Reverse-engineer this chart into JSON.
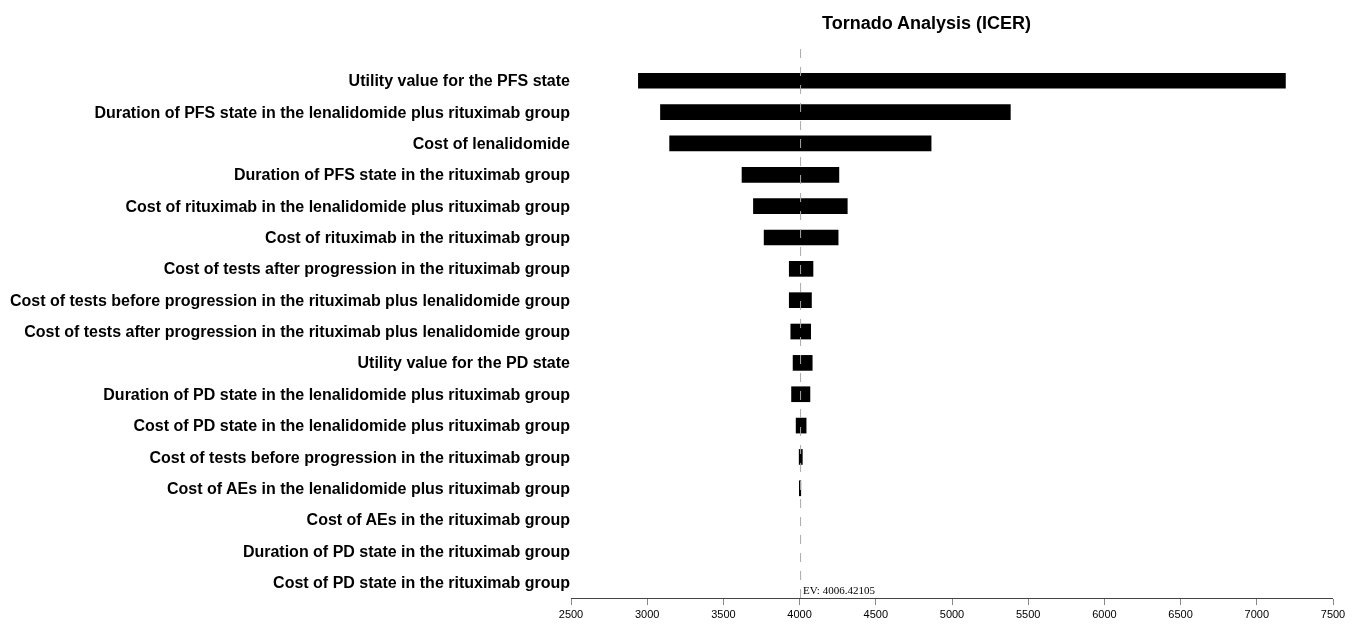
{
  "chart_data": {
    "type": "bar",
    "orientation": "horizontal",
    "title": "Tornado Analysis (ICER)",
    "categories": [
      "Utility value for the PFS state",
      "Duration of PFS state in the lenalidomide plus rituximab group",
      "Cost of lenalidomide",
      "Duration of PFS state in the rituximab group",
      "Cost of rituximab in the lenalidomide plus rituximab group",
      "Cost of rituximab in the rituximab group",
      "Cost of tests after progression in the rituximab group",
      "Cost of tests before progression in the rituximab plus lenalidomide group",
      "Cost of tests after progression in the rituximab plus lenalidomide group",
      "Utility value for the PD state",
      "Duration of PD state in the lenalidomide plus rituximab group",
      "Cost of PD state in the lenalidomide plus rituximab group",
      "Cost of tests before progression in the rituximab group",
      "Cost of AEs in the lenalidomide plus rituximab group",
      "Cost of AEs in the rituximab group",
      "Duration of PD state in the rituximab group",
      "Cost of PD state in the rituximab group"
    ],
    "base": [
      2940,
      3085,
      3145,
      3620,
      3695,
      3765,
      3930,
      3930,
      3940,
      3955,
      3945,
      3975,
      3995,
      4002,
      null,
      null,
      null
    ],
    "values": [
      4250,
      2300,
      1720,
      640,
      620,
      490,
      160,
      150,
      135,
      130,
      125,
      70,
      25,
      8,
      null,
      null,
      null
    ],
    "color": "#000000",
    "xlim": [
      2500,
      7500
    ],
    "xticks": [
      2500,
      3000,
      3500,
      4000,
      4500,
      5000,
      5500,
      6000,
      6500,
      7000,
      7500
    ],
    "ref_lines": [
      {
        "axis": "x",
        "value": 4006.42105,
        "label": "EV: 4006.42105",
        "color": "#aaaaaa",
        "line_style": "dashed"
      }
    ]
  }
}
